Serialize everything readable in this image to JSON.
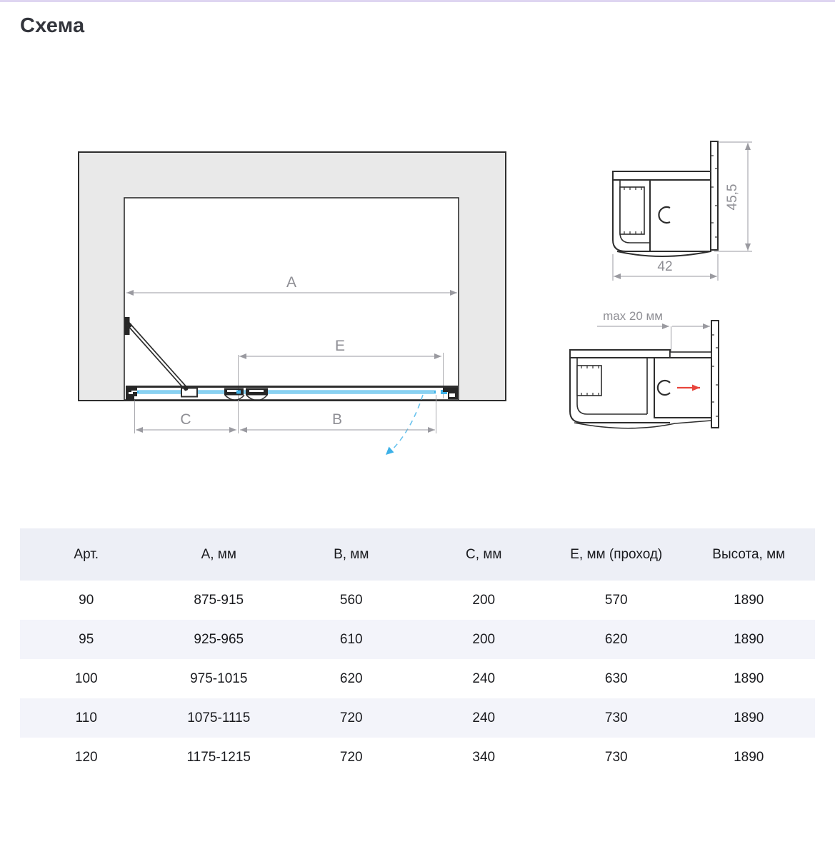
{
  "page": {
    "title": "Схема",
    "top_strip_color": "#ded5f1"
  },
  "diagram": {
    "dimension_labels": {
      "A": "A",
      "B": "B",
      "C": "C",
      "E": "E"
    },
    "colors": {
      "wall_fill": "#e9e9e9",
      "line_dark": "#2e2e2e",
      "dimension_gray": "#9a9aa0",
      "glass_blue": "#3fb2e8",
      "swing_arc_blue": "#69c3ee",
      "red_arrow": "#e8453c"
    }
  },
  "profiles": {
    "top_profile": {
      "width_mm": "42",
      "height_mm": "45,5"
    },
    "bottom_profile": {
      "adjustment_label": "max 20 мм"
    }
  },
  "table": {
    "headers": [
      "Арт.",
      "А, мм",
      "В, мм",
      "С, мм",
      "Е, мм (проход)",
      "Высота, мм"
    ],
    "rows": [
      [
        "90",
        "875-915",
        "560",
        "200",
        "570",
        "1890"
      ],
      [
        "95",
        "925-965",
        "610",
        "200",
        "620",
        "1890"
      ],
      [
        "100",
        "975-1015",
        "620",
        "240",
        "630",
        "1890"
      ],
      [
        "110",
        "1075-1115",
        "720",
        "240",
        "730",
        "1890"
      ],
      [
        "120",
        "1175-1215",
        "720",
        "340",
        "730",
        "1890"
      ]
    ]
  }
}
